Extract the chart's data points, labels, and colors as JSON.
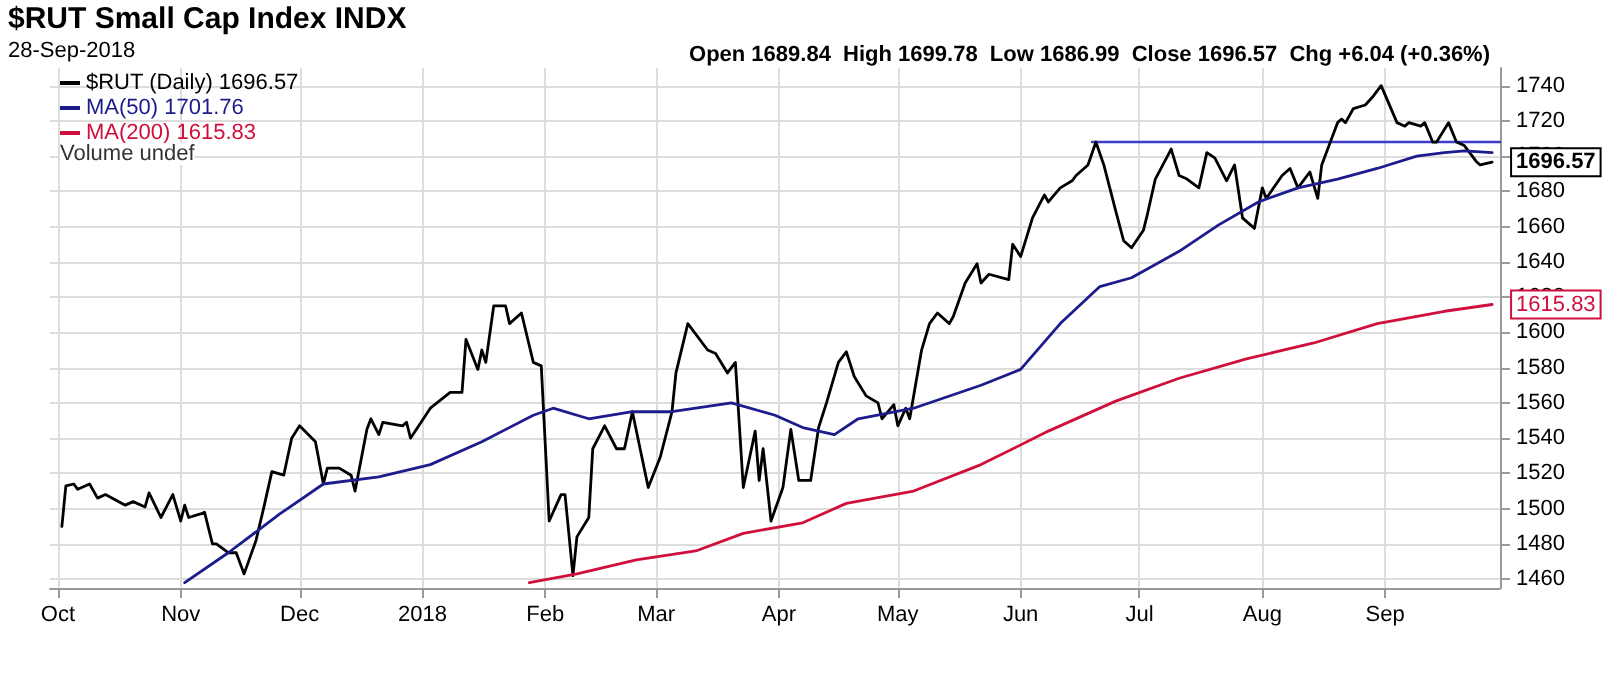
{
  "chart_data": {
    "type": "line",
    "title": "$RUT Small Cap Index INDX",
    "subtitle": "28-Sep-2018",
    "annotations": [
      "Open 1689.84  High 1699.78  Low 1686.99  Close 1696.57  Chg +6.04 (+0.36%)",
      "Volume undef"
    ],
    "series": [
      {
        "name": "$RUT (Daily) 1696.57",
        "color": "#000000",
        "x": [
          "2017-10-02",
          "2017-10-03",
          "2017-10-05",
          "2017-10-06",
          "2017-10-09",
          "2017-10-11",
          "2017-10-13",
          "2017-10-18",
          "2017-10-20",
          "2017-10-23",
          "2017-10-24",
          "2017-10-27",
          "2017-10-30",
          "2017-11-01",
          "2017-11-02",
          "2017-11-03",
          "2017-11-06",
          "2017-11-07",
          "2017-11-09",
          "2017-11-10",
          "2017-11-13",
          "2017-11-15",
          "2017-11-17",
          "2017-11-20",
          "2017-11-22",
          "2017-11-24",
          "2017-11-27",
          "2017-11-29",
          "2017-12-01",
          "2017-12-05",
          "2017-12-07",
          "2017-12-08",
          "2017-12-11",
          "2017-12-14",
          "2017-12-15",
          "2017-12-18",
          "2017-12-19",
          "2017-12-21",
          "2017-12-22",
          "2017-12-27",
          "2017-12-28",
          "2017-12-29",
          "2018-01-03",
          "2018-01-08",
          "2018-01-11",
          "2018-01-12",
          "2018-01-15",
          "2018-01-16",
          "2018-01-17",
          "2018-01-19",
          "2018-01-22",
          "2018-01-23",
          "2018-01-26",
          "2018-01-29",
          "2018-01-31",
          "2018-02-02",
          "2018-02-05",
          "2018-02-06",
          "2018-02-08",
          "2018-02-09",
          "2018-02-12",
          "2018-02-13",
          "2018-02-16",
          "2018-02-19",
          "2018-02-21",
          "2018-02-23",
          "2018-02-27",
          "2018-03-02",
          "2018-03-05",
          "2018-03-06",
          "2018-03-09",
          "2018-03-14",
          "2018-03-16",
          "2018-03-19",
          "2018-03-21",
          "2018-03-23",
          "2018-03-26",
          "2018-03-27",
          "2018-03-28",
          "2018-03-30",
          "2018-04-02",
          "2018-04-04",
          "2018-04-06",
          "2018-04-09",
          "2018-04-11",
          "2018-04-12",
          "2018-04-13",
          "2018-04-16",
          "2018-04-18",
          "2018-04-20",
          "2018-04-23",
          "2018-04-26",
          "2018-04-27",
          "2018-04-30",
          "2018-05-01",
          "2018-05-03",
          "2018-05-04",
          "2018-05-07",
          "2018-05-09",
          "2018-05-11",
          "2018-05-14",
          "2018-05-15",
          "2018-05-18",
          "2018-05-21",
          "2018-05-22",
          "2018-05-24",
          "2018-05-29",
          "2018-05-30",
          "2018-06-01",
          "2018-06-04",
          "2018-06-07",
          "2018-06-08",
          "2018-06-11",
          "2018-06-14",
          "2018-06-15",
          "2018-06-18",
          "2018-06-20",
          "2018-06-22",
          "2018-06-25",
          "2018-06-27",
          "2018-06-29",
          "2018-07-02",
          "2018-07-03",
          "2018-07-05",
          "2018-07-09",
          "2018-07-11",
          "2018-07-13",
          "2018-07-16",
          "2018-07-18",
          "2018-07-20",
          "2018-07-23",
          "2018-07-25",
          "2018-07-27",
          "2018-07-30",
          "2018-08-01",
          "2018-08-02",
          "2018-08-06",
          "2018-08-08",
          "2018-08-10",
          "2018-08-13",
          "2018-08-15",
          "2018-08-16",
          "2018-08-20",
          "2018-08-21",
          "2018-08-22",
          "2018-08-24",
          "2018-08-27",
          "2018-08-29",
          "2018-08-31",
          "2018-09-04",
          "2018-09-06",
          "2018-09-07",
          "2018-09-10",
          "2018-09-11",
          "2018-09-13",
          "2018-09-14",
          "2018-09-17",
          "2018-09-19",
          "2018-09-21",
          "2018-09-24",
          "2018-09-25",
          "2018-09-28"
        ],
        "values": [
          1490,
          1513,
          1514,
          1511,
          1514,
          1506,
          1508,
          1502,
          1504,
          1501,
          1509,
          1495,
          1508,
          1493,
          1502,
          1495,
          1497,
          1498,
          1480,
          1480,
          1475,
          1475,
          1463,
          1482,
          1501,
          1521,
          1519,
          1540,
          1547,
          1538,
          1514,
          1523,
          1523,
          1519,
          1510,
          1545,
          1551,
          1542,
          1549,
          1547,
          1549,
          1540,
          1557,
          1566,
          1566,
          1596,
          1579,
          1590,
          1583,
          1615,
          1615,
          1605,
          1611,
          1583,
          1581,
          1493,
          1508,
          1508,
          1462,
          1484,
          1495,
          1534,
          1547,
          1534,
          1534,
          1555,
          1512,
          1529,
          1555,
          1577,
          1605,
          1590,
          1588,
          1577,
          1583,
          1512,
          1544,
          1516,
          1534,
          1493,
          1512,
          1545,
          1516,
          1516,
          1546,
          1553,
          1560,
          1583,
          1589,
          1575,
          1564,
          1560,
          1551,
          1559,
          1547,
          1557,
          1551,
          1590,
          1605,
          1611,
          1605,
          1609,
          1628,
          1639,
          1628,
          1633,
          1630,
          1650,
          1643,
          1665,
          1678,
          1674,
          1682,
          1686,
          1689,
          1695,
          1708,
          1695,
          1669,
          1652,
          1648,
          1658,
          1667,
          1687,
          1704,
          1689,
          1687,
          1682,
          1702,
          1699,
          1686,
          1695,
          1665,
          1659,
          1682,
          1676,
          1689,
          1693,
          1682,
          1691,
          1676,
          1695,
          1719,
          1721,
          1719,
          1727,
          1729,
          1734,
          1740,
          1719,
          1717,
          1719,
          1717,
          1719,
          1708,
          1708,
          1719,
          1708,
          1706,
          1697,
          1695,
          1696.57
        ],
        "value_labels": [
          null,
          null,
          null,
          null,
          null,
          null,
          null,
          null,
          null,
          null,
          null,
          null,
          null,
          null,
          null,
          null,
          null,
          null,
          null,
          null,
          null,
          null,
          null,
          null,
          null,
          null,
          null,
          null,
          null,
          null,
          null,
          null,
          null,
          null,
          null,
          null,
          null,
          null,
          null,
          null,
          null,
          null,
          null,
          null,
          null,
          null,
          null,
          null,
          null,
          null,
          null,
          null,
          null,
          null,
          null,
          null,
          null,
          null,
          null,
          null,
          null,
          null,
          null,
          null,
          null,
          null,
          null,
          null,
          null,
          null,
          null,
          null,
          null,
          null,
          null,
          null,
          null,
          null,
          null,
          null,
          null,
          null,
          null,
          null,
          null,
          null,
          null,
          null,
          null,
          null,
          null,
          null,
          null,
          null,
          null,
          null,
          null,
          null,
          null,
          null,
          null,
          null,
          null,
          null,
          null,
          null,
          null,
          null,
          null,
          null,
          null,
          null,
          null,
          null,
          null,
          null,
          null,
          null,
          null,
          null,
          null,
          null,
          null,
          null,
          null,
          null,
          null,
          null,
          null,
          null,
          null,
          null,
          null,
          null,
          null,
          null,
          null,
          null,
          null,
          null,
          null,
          null,
          null,
          null,
          null,
          null,
          null,
          null,
          null,
          null,
          null,
          null,
          null,
          null,
          null,
          null,
          null,
          null,
          null,
          null,
          null,
          "1696.57"
        ]
      },
      {
        "name": "MA(50) 1701.76",
        "color": "#1c1c8c",
        "x": [
          "2017-11-02",
          "2017-11-13",
          "2017-11-26",
          "2017-12-07",
          "2017-12-21",
          "2018-01-03",
          "2018-01-16",
          "2018-01-29",
          "2018-02-03",
          "2018-02-12",
          "2018-02-23",
          "2018-03-05",
          "2018-03-20",
          "2018-03-31",
          "2018-04-07",
          "2018-04-15",
          "2018-04-21",
          "2018-05-05",
          "2018-05-22",
          "2018-06-01",
          "2018-06-11",
          "2018-06-21",
          "2018-06-29",
          "2018-07-11",
          "2018-07-21",
          "2018-07-31",
          "2018-08-10",
          "2018-08-20",
          "2018-08-30",
          "2018-09-09",
          "2018-09-16",
          "2018-09-21",
          "2018-09-28"
        ],
        "values": [
          1458,
          1475,
          1497,
          1514,
          1518,
          1525,
          1538,
          1553,
          1557,
          1551,
          1555,
          1555,
          1560,
          1553,
          1546,
          1542,
          1551,
          1557,
          1570,
          1579,
          1605,
          1626,
          1631,
          1646,
          1661,
          1674,
          1682,
          1687,
          1693,
          1700,
          1702,
          1703,
          1702
        ]
      },
      {
        "name": "MA(200) 1615.83",
        "color": "#d0103c",
        "x": [
          "2018-01-28",
          "2018-02-09",
          "2018-02-24",
          "2018-03-11",
          "2018-03-23",
          "2018-04-07",
          "2018-04-18",
          "2018-05-05",
          "2018-05-22",
          "2018-06-08",
          "2018-06-25",
          "2018-07-11",
          "2018-07-28",
          "2018-08-14",
          "2018-08-30",
          "2018-09-16",
          "2018-09-28"
        ],
        "values": [
          1458,
          1463,
          1471,
          1476,
          1486,
          1492,
          1503,
          1510,
          1525,
          1544,
          1561,
          1574,
          1585,
          1594,
          1605,
          1612,
          1615.83
        ],
        "value_labels": [
          null,
          null,
          null,
          null,
          null,
          null,
          null,
          null,
          null,
          null,
          null,
          null,
          null,
          null,
          null,
          null,
          "1615.83"
        ]
      },
      {
        "color": "#3c3ccc",
        "x": [
          "2018-06-19",
          "2018-09-30"
        ],
        "values": [
          1708,
          1708
        ]
      }
    ],
    "xlim": [
      "2017-09-29",
      "2018-09-30"
    ],
    "xticks": [
      {
        "value": "2017-10-01",
        "label": "Oct"
      },
      {
        "value": "2017-11-01",
        "label": "Nov"
      },
      {
        "value": "2017-12-01",
        "label": "Dec"
      },
      {
        "value": "2018-01-01",
        "label": "2018"
      },
      {
        "value": "2018-02-01",
        "label": "Feb"
      },
      {
        "value": "2018-03-01",
        "label": "Mar"
      },
      {
        "value": "2018-04-01",
        "label": "Apr"
      },
      {
        "value": "2018-05-01",
        "label": "May"
      },
      {
        "value": "2018-06-01",
        "label": "Jun"
      },
      {
        "value": "2018-07-01",
        "label": "Jul"
      },
      {
        "value": "2018-08-01",
        "label": "Aug"
      },
      {
        "value": "2018-09-01",
        "label": "Sep"
      }
    ],
    "ylim": [
      1455,
      1750
    ],
    "yticks": [
      1460,
      1480,
      1500,
      1520,
      1540,
      1560,
      1580,
      1600,
      1620,
      1640,
      1660,
      1680,
      1700,
      1720,
      1740
    ],
    "grid": true,
    "legend": "top left",
    "marker": "none",
    "line_style": "solid"
  }
}
